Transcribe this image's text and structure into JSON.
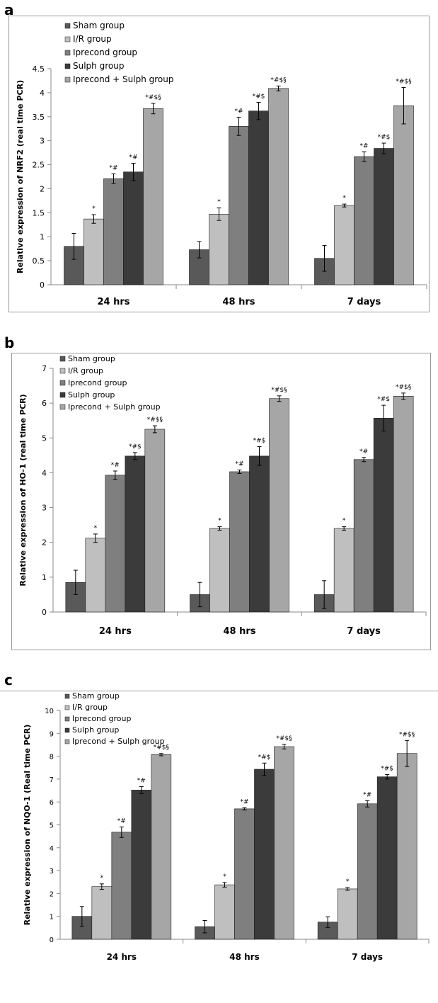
{
  "chart_data": [
    {
      "panel": "a",
      "type": "bar",
      "ylabel": "Relative expression of NRF2 (real time PCR)",
      "ylim": [
        0,
        4.5
      ],
      "yticks": [
        "0",
        "0.5",
        "1",
        "1.5",
        "2",
        "2.5",
        "3",
        "3.5",
        "4",
        "4.5"
      ],
      "categories": [
        "24 hrs",
        "48 hrs",
        "7 days"
      ],
      "legend_placement": "top-left",
      "grid": false,
      "series": [
        {
          "name": "Sham group",
          "color": "#595959",
          "values": [
            0.8,
            0.73,
            0.55
          ],
          "errors": [
            0.27,
            0.17,
            0.27
          ],
          "annotations": [
            "",
            "",
            ""
          ]
        },
        {
          "name": "I/R group",
          "color": "#bfbfbf",
          "values": [
            1.37,
            1.47,
            1.65
          ],
          "errors": [
            0.09,
            0.13,
            0.03
          ],
          "annotations": [
            "*",
            "*",
            "*"
          ]
        },
        {
          "name": "Iprecond group",
          "color": "#7f7f7f",
          "values": [
            2.21,
            3.3,
            2.67
          ],
          "errors": [
            0.1,
            0.19,
            0.1
          ],
          "annotations": [
            "*#",
            "*#",
            "*#"
          ]
        },
        {
          "name": "Sulph group",
          "color": "#3b3b3b",
          "values": [
            2.35,
            3.62,
            2.84
          ],
          "errors": [
            0.18,
            0.18,
            0.11
          ],
          "annotations": [
            "*#",
            "*#$",
            "*#$"
          ]
        },
        {
          "name": "Iprecond + Sulph group",
          "color": "#a6a6a6",
          "values": [
            3.67,
            4.09,
            3.73
          ],
          "errors": [
            0.11,
            0.05,
            0.38
          ],
          "annotations": [
            "*#$§",
            "*#$§",
            "*#$§"
          ]
        }
      ]
    },
    {
      "panel": "b",
      "type": "bar",
      "ylabel": "Relative expression of HO-1 (real time PCR)",
      "ylim": [
        0,
        7
      ],
      "yticks": [
        "0",
        "1",
        "2",
        "3",
        "4",
        "5",
        "6",
        "7"
      ],
      "categories": [
        "24 hrs",
        "48 hrs",
        "7 days"
      ],
      "legend_placement": "top-left",
      "grid": false,
      "series": [
        {
          "name": "Sham group",
          "color": "#595959",
          "values": [
            0.85,
            0.5,
            0.5
          ],
          "errors": [
            0.35,
            0.35,
            0.4
          ],
          "annotations": [
            "",
            "",
            ""
          ]
        },
        {
          "name": "I/R group",
          "color": "#bfbfbf",
          "values": [
            2.12,
            2.4,
            2.4
          ],
          "errors": [
            0.12,
            0.05,
            0.05
          ],
          "annotations": [
            "*",
            "*",
            "*"
          ]
        },
        {
          "name": "Iprecond group",
          "color": "#7f7f7f",
          "values": [
            3.93,
            4.03,
            4.38
          ],
          "errors": [
            0.12,
            0.05,
            0.06
          ],
          "annotations": [
            "*#",
            "*#",
            "*#"
          ]
        },
        {
          "name": "Sulph group",
          "color": "#3b3b3b",
          "values": [
            4.48,
            4.48,
            5.57
          ],
          "errors": [
            0.1,
            0.27,
            0.37
          ],
          "annotations": [
            "*#$",
            "*#$",
            "*#$"
          ]
        },
        {
          "name": "Iprecond + Sulph group",
          "color": "#a6a6a6",
          "values": [
            5.25,
            6.13,
            6.2
          ],
          "errors": [
            0.1,
            0.08,
            0.09
          ],
          "annotations": [
            "*#$§",
            "*#$§",
            "*#$§"
          ]
        }
      ]
    },
    {
      "panel": "c",
      "type": "bar",
      "ylabel": "Relative expression of NQO-1 (Real time PCR)",
      "ylim": [
        0,
        10
      ],
      "yticks": [
        "0",
        "1",
        "2",
        "3",
        "4",
        "5",
        "6",
        "7",
        "8",
        "9",
        "10"
      ],
      "categories": [
        "24 hrs",
        "48 hrs",
        "7 days"
      ],
      "legend_placement": "top-left",
      "grid": false,
      "series": [
        {
          "name": "Sham group",
          "color": "#595959",
          "values": [
            1.0,
            0.55,
            0.75
          ],
          "errors": [
            0.43,
            0.27,
            0.23
          ],
          "annotations": [
            "",
            "",
            ""
          ]
        },
        {
          "name": "I/R group",
          "color": "#bfbfbf",
          "values": [
            2.3,
            2.38,
            2.2
          ],
          "errors": [
            0.12,
            0.1,
            0.06
          ],
          "annotations": [
            "*",
            "*",
            "*"
          ]
        },
        {
          "name": "Iprecond group",
          "color": "#7f7f7f",
          "values": [
            4.68,
            5.7,
            5.92
          ],
          "errors": [
            0.23,
            0.05,
            0.14
          ],
          "annotations": [
            "*#",
            "*#",
            "*#"
          ]
        },
        {
          "name": "Sulph group",
          "color": "#3b3b3b",
          "values": [
            6.52,
            7.43,
            7.1
          ],
          "errors": [
            0.15,
            0.27,
            0.1
          ],
          "annotations": [
            "*#",
            "*#$",
            "*#$"
          ]
        },
        {
          "name": "Iprecond + Sulph group",
          "color": "#a6a6a6",
          "values": [
            8.07,
            8.42,
            8.12
          ],
          "errors": [
            0.05,
            0.1,
            0.57
          ],
          "annotations": [
            "*#$§",
            "*#$§",
            "*#$§"
          ]
        }
      ]
    }
  ]
}
